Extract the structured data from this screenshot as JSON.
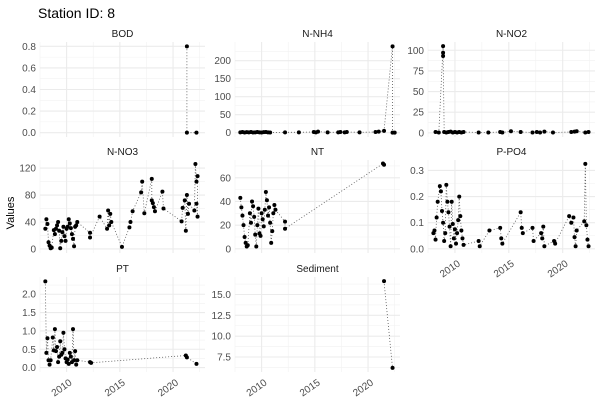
{
  "chart_data": {
    "type": "scatter",
    "title": "Station ID: 8",
    "xlabel": "",
    "ylabel": "Values",
    "grid": true,
    "line_style": "dotted",
    "point_color": "#000000",
    "line_color": "#555555",
    "grid_color": "#ebebeb",
    "xlim": [
      2007.5,
      2023.0
    ],
    "x_ticks": [
      2010,
      2015,
      2020
    ],
    "facets": [
      {
        "name": "BOD",
        "ylim": [
          -0.04,
          0.84
        ],
        "y_ticks": [
          0,
          0.2,
          0.4,
          0.6,
          0.8
        ],
        "y_tick_labels": [
          "0.0",
          "0.2",
          "0.4",
          "0.6",
          "0.8"
        ],
        "points": [
          [
            2021.3,
            0.8
          ],
          [
            2021.3,
            0
          ],
          [
            2022.2,
            0
          ]
        ]
      },
      {
        "name": "N-NH4",
        "ylim": [
          -12,
          252
        ],
        "y_ticks": [
          0,
          50,
          100,
          150,
          200
        ],
        "y_tick_labels": [
          "0",
          "50",
          "100",
          "150",
          "200"
        ],
        "points": [
          [
            2008.0,
            1
          ],
          [
            2008.2,
            2
          ],
          [
            2008.4,
            0.5
          ],
          [
            2008.6,
            1.5
          ],
          [
            2008.8,
            1
          ],
          [
            2009.0,
            2
          ],
          [
            2009.2,
            0.5
          ],
          [
            2009.4,
            1
          ],
          [
            2009.6,
            2
          ],
          [
            2009.8,
            1
          ],
          [
            2010.0,
            0.5
          ],
          [
            2010.2,
            1.5
          ],
          [
            2010.4,
            2
          ],
          [
            2010.6,
            1
          ],
          [
            2010.8,
            0.5
          ],
          [
            2012.2,
            1
          ],
          [
            2013.5,
            1
          ],
          [
            2014.9,
            2
          ],
          [
            2015.1,
            1
          ],
          [
            2015.3,
            3
          ],
          [
            2016.2,
            1
          ],
          [
            2017.2,
            1
          ],
          [
            2017.4,
            2
          ],
          [
            2017.8,
            1
          ],
          [
            2018.0,
            2
          ],
          [
            2019.2,
            1
          ],
          [
            2020.7,
            2
          ],
          [
            2021.0,
            3
          ],
          [
            2021.5,
            5
          ],
          [
            2022.3,
            240
          ],
          [
            2022.3,
            0
          ],
          [
            2022.5,
            0
          ]
        ]
      },
      {
        "name": "N-NO2",
        "ylim": [
          -5,
          110
        ],
        "y_ticks": [
          0,
          25,
          50,
          75,
          100
        ],
        "y_tick_labels": [
          "0",
          "25",
          "50",
          "75",
          "100"
        ],
        "points": [
          [
            2008.2,
            1
          ],
          [
            2008.5,
            0.5
          ],
          [
            2008.9,
            105
          ],
          [
            2008.9,
            97
          ],
          [
            2008.9,
            93
          ],
          [
            2009.0,
            1
          ],
          [
            2009.2,
            0.5
          ],
          [
            2009.4,
            1
          ],
          [
            2009.6,
            1.5
          ],
          [
            2009.8,
            0.5
          ],
          [
            2010.0,
            1
          ],
          [
            2010.2,
            0.5
          ],
          [
            2010.4,
            1
          ],
          [
            2010.6,
            0.5
          ],
          [
            2010.8,
            1
          ],
          [
            2012.2,
            0.5
          ],
          [
            2013.1,
            0.5
          ],
          [
            2014.2,
            1
          ],
          [
            2014.4,
            0.5
          ],
          [
            2015.2,
            2
          ],
          [
            2016.1,
            1
          ],
          [
            2017.2,
            0.5
          ],
          [
            2017.6,
            1
          ],
          [
            2017.9,
            0.5
          ],
          [
            2018.3,
            1.5
          ],
          [
            2019.1,
            0.5
          ],
          [
            2020.8,
            1
          ],
          [
            2021.1,
            1.5
          ],
          [
            2021.3,
            2
          ],
          [
            2022.1,
            0.5
          ],
          [
            2022.4,
            1
          ]
        ]
      },
      {
        "name": "N-NO3",
        "ylim": [
          -6,
          132
        ],
        "y_ticks": [
          0,
          40,
          80,
          120
        ],
        "y_tick_labels": [
          "0",
          "40",
          "80",
          "120"
        ],
        "points": [
          [
            2008.0,
            30
          ],
          [
            2008.1,
            44
          ],
          [
            2008.2,
            37
          ],
          [
            2008.3,
            10
          ],
          [
            2008.4,
            5
          ],
          [
            2008.5,
            1
          ],
          [
            2008.6,
            2
          ],
          [
            2008.8,
            28
          ],
          [
            2008.9,
            22
          ],
          [
            2009.0,
            30
          ],
          [
            2009.1,
            35
          ],
          [
            2009.2,
            40
          ],
          [
            2009.3,
            27
          ],
          [
            2009.4,
            1
          ],
          [
            2009.5,
            12
          ],
          [
            2009.6,
            25
          ],
          [
            2009.7,
            33
          ],
          [
            2009.8,
            19
          ],
          [
            2009.9,
            12
          ],
          [
            2010.0,
            30
          ],
          [
            2010.1,
            33
          ],
          [
            2010.2,
            44
          ],
          [
            2010.3,
            38
          ],
          [
            2010.4,
            31
          ],
          [
            2010.5,
            22
          ],
          [
            2010.6,
            15
          ],
          [
            2010.7,
            4
          ],
          [
            2010.8,
            33
          ],
          [
            2010.9,
            35
          ],
          [
            2011.0,
            40
          ],
          [
            2012.2,
            24
          ],
          [
            2012.2,
            17
          ],
          [
            2013.1,
            48
          ],
          [
            2013.8,
            30
          ],
          [
            2013.9,
            57
          ],
          [
            2014.0,
            35
          ],
          [
            2014.1,
            52
          ],
          [
            2014.2,
            40
          ],
          [
            2015.2,
            3
          ],
          [
            2015.9,
            32
          ],
          [
            2016.0,
            40
          ],
          [
            2016.2,
            56
          ],
          [
            2017.0,
            84
          ],
          [
            2017.1,
            100
          ],
          [
            2017.3,
            53
          ],
          [
            2018.0,
            104
          ],
          [
            2018.0,
            72
          ],
          [
            2018.1,
            68
          ],
          [
            2018.2,
            62
          ],
          [
            2018.3,
            56
          ],
          [
            2019.0,
            85
          ],
          [
            2019.1,
            60
          ],
          [
            2020.8,
            41
          ],
          [
            2020.9,
            61
          ],
          [
            2021.1,
            72
          ],
          [
            2021.2,
            27
          ],
          [
            2021.3,
            80
          ],
          [
            2021.4,
            52
          ],
          [
            2021.5,
            67
          ],
          [
            2022.0,
            57
          ],
          [
            2022.1,
            126
          ],
          [
            2022.2,
            100
          ],
          [
            2022.3,
            108
          ],
          [
            2022.3,
            48
          ],
          [
            2022.2,
            67
          ]
        ]
      },
      {
        "name": "NT",
        "ylim": [
          -3.5,
          75
        ],
        "y_ticks": [
          0,
          20,
          40,
          60
        ],
        "y_tick_labels": [
          "0",
          "20",
          "40",
          "60"
        ],
        "points": [
          [
            2008.0,
            43
          ],
          [
            2008.1,
            35
          ],
          [
            2008.2,
            28
          ],
          [
            2008.3,
            20
          ],
          [
            2008.4,
            10
          ],
          [
            2008.5,
            5
          ],
          [
            2008.6,
            2
          ],
          [
            2008.7,
            3
          ],
          [
            2008.9,
            30
          ],
          [
            2009.0,
            22
          ],
          [
            2009.1,
            40
          ],
          [
            2009.2,
            36
          ],
          [
            2009.3,
            27
          ],
          [
            2009.4,
            12
          ],
          [
            2009.5,
            2
          ],
          [
            2009.6,
            20
          ],
          [
            2009.7,
            34
          ],
          [
            2009.8,
            13
          ],
          [
            2009.9,
            11
          ],
          [
            2010.0,
            30
          ],
          [
            2010.1,
            25
          ],
          [
            2010.2,
            19
          ],
          [
            2010.3,
            33
          ],
          [
            2010.4,
            48
          ],
          [
            2010.5,
            41
          ],
          [
            2010.6,
            28
          ],
          [
            2010.7,
            35
          ],
          [
            2010.8,
            22
          ],
          [
            2010.9,
            5
          ],
          [
            2011.0,
            15
          ],
          [
            2011.1,
            30
          ],
          [
            2011.2,
            37
          ],
          [
            2011.3,
            33
          ],
          [
            2012.2,
            23
          ],
          [
            2012.2,
            17
          ],
          [
            2021.4,
            72
          ],
          [
            2021.5,
            71
          ]
        ]
      },
      {
        "name": "P-PO4",
        "ylim": [
          -0.016,
          0.34
        ],
        "y_ticks": [
          0,
          0.1,
          0.2,
          0.3
        ],
        "y_tick_labels": [
          "0.0",
          "0.1",
          "0.2",
          "0.3"
        ],
        "points": [
          [
            2008.0,
            0.06
          ],
          [
            2008.1,
            0.07
          ],
          [
            2008.2,
            0.035
          ],
          [
            2008.3,
            0.12
          ],
          [
            2008.4,
            0.18
          ],
          [
            2008.6,
            0.24
          ],
          [
            2008.7,
            0.22
          ],
          [
            2008.8,
            0.145
          ],
          [
            2008.9,
            0.1
          ],
          [
            2009.0,
            0.03
          ],
          [
            2009.1,
            0.06
          ],
          [
            2009.2,
            0.245
          ],
          [
            2009.3,
            0.18
          ],
          [
            2009.4,
            0.14
          ],
          [
            2009.5,
            0.085
          ],
          [
            2009.6,
            0.01
          ],
          [
            2009.7,
            0.18
          ],
          [
            2009.8,
            0.095
          ],
          [
            2009.9,
            0.04
          ],
          [
            2010.0,
            0.075
          ],
          [
            2010.1,
            0.02
          ],
          [
            2010.2,
            0.06
          ],
          [
            2010.3,
            0.11
          ],
          [
            2010.4,
            0.2
          ],
          [
            2010.5,
            0.125
          ],
          [
            2010.6,
            0.07
          ],
          [
            2010.7,
            0.04
          ],
          [
            2010.8,
            0.015
          ],
          [
            2012.2,
            0.03
          ],
          [
            2012.3,
            0.01
          ],
          [
            2013.2,
            0.07
          ],
          [
            2014.2,
            0.08
          ],
          [
            2014.3,
            0.04
          ],
          [
            2014.4,
            0.02
          ],
          [
            2016.1,
            0.14
          ],
          [
            2016.2,
            0.08
          ],
          [
            2016.3,
            0.06
          ],
          [
            2017.2,
            0.08
          ],
          [
            2017.3,
            0.03
          ],
          [
            2018.0,
            0.06
          ],
          [
            2018.1,
            0.04
          ],
          [
            2018.2,
            0.085
          ],
          [
            2018.3,
            0.01
          ],
          [
            2019.2,
            0.03
          ],
          [
            2019.3,
            0.02
          ],
          [
            2020.6,
            0.125
          ],
          [
            2020.8,
            0.1
          ],
          [
            2021.0,
            0.12
          ],
          [
            2021.1,
            0.045
          ],
          [
            2021.2,
            0.01
          ],
          [
            2021.3,
            0.07
          ],
          [
            2022.0,
            0.105
          ],
          [
            2022.1,
            0.325
          ],
          [
            2022.2,
            0.09
          ],
          [
            2022.3,
            0.035
          ],
          [
            2022.4,
            0.01
          ]
        ]
      },
      {
        "name": "PT",
        "ylim": [
          -0.12,
          2.47
        ],
        "y_ticks": [
          0,
          0.5,
          1,
          1.5,
          2
        ],
        "y_tick_labels": [
          "0.0",
          "0.5",
          "1.0",
          "1.5",
          "2.0"
        ],
        "points": [
          [
            2008.0,
            2.35
          ],
          [
            2008.1,
            0.4
          ],
          [
            2008.2,
            0.8
          ],
          [
            2008.3,
            0.2
          ],
          [
            2008.4,
            0.08
          ],
          [
            2008.5,
            0.2
          ],
          [
            2008.7,
            0.82
          ],
          [
            2008.8,
            0.47
          ],
          [
            2008.9,
            1.05
          ],
          [
            2009.0,
            0.45
          ],
          [
            2009.1,
            0.56
          ],
          [
            2009.2,
            0.15
          ],
          [
            2009.3,
            0.3
          ],
          [
            2009.4,
            0.72
          ],
          [
            2009.5,
            0.35
          ],
          [
            2009.6,
            0.4
          ],
          [
            2009.7,
            0.95
          ],
          [
            2009.8,
            0.5
          ],
          [
            2009.9,
            0.25
          ],
          [
            2010.0,
            0.15
          ],
          [
            2010.1,
            0.22
          ],
          [
            2010.2,
            0.1
          ],
          [
            2010.3,
            0.4
          ],
          [
            2010.4,
            0.3
          ],
          [
            2010.5,
            0.15
          ],
          [
            2010.6,
            1.05
          ],
          [
            2010.7,
            0.2
          ],
          [
            2010.8,
            0.45
          ],
          [
            2010.9,
            0.08
          ],
          [
            2011.0,
            0.2
          ],
          [
            2012.2,
            0.15
          ],
          [
            2012.3,
            0.13
          ],
          [
            2021.2,
            0.33
          ],
          [
            2021.3,
            0.28
          ],
          [
            2022.2,
            0.1
          ]
        ]
      },
      {
        "name": "Sediment",
        "ylim": [
          5.7,
          17.1
        ],
        "y_ticks": [
          7.5,
          10,
          12.5,
          15
        ],
        "y_tick_labels": [
          "7.5",
          "10.0",
          "12.5",
          "15.0"
        ],
        "points": [
          [
            2021.5,
            16.6
          ],
          [
            2022.3,
            6.2
          ]
        ]
      }
    ]
  }
}
